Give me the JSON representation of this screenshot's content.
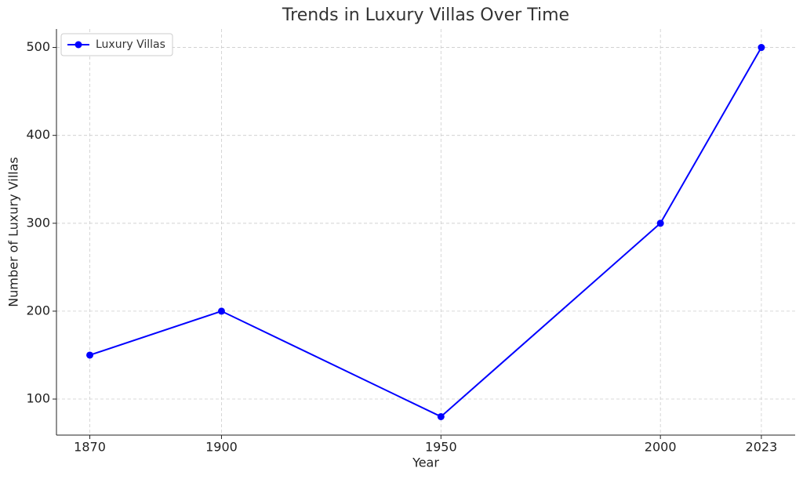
{
  "chart_data": {
    "type": "line",
    "title": "Trends in Luxury Villas Over Time",
    "x_label": "Year",
    "y_label": "Number of Luxury Villas",
    "x": [
      1870,
      1900,
      1950,
      2000,
      2023
    ],
    "series": [
      {
        "name": "Luxury Villas",
        "color": "#0000ff",
        "values": [
          150,
          200,
          80,
          300,
          500
        ]
      }
    ],
    "xlim": [
      1862.4,
      2030.7
    ],
    "xticks": [
      1870,
      1900,
      1950,
      2000,
      2023
    ],
    "ylim": [
      59,
      521
    ],
    "yticks": [
      100,
      200,
      300,
      400,
      500
    ],
    "grid": true,
    "legend": "upper left"
  }
}
